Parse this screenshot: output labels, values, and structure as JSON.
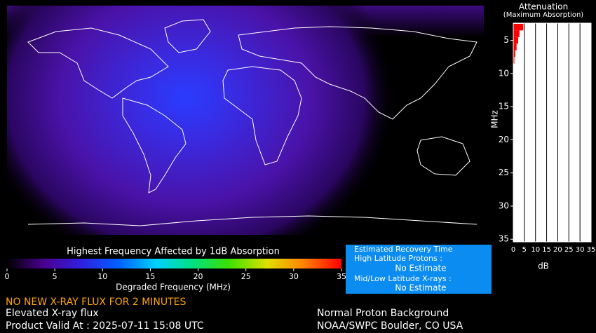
{
  "chart_data": [
    {
      "type": "bar",
      "orientation": "horizontal",
      "title": "Attenuation",
      "subtitle": "(Maximum Absorption)",
      "y": [
        3,
        4,
        5,
        6,
        7,
        8
      ],
      "values": [
        4.5,
        2.8,
        2.2,
        1.5,
        0.9,
        0.5
      ],
      "color": "#ff0000",
      "xlabel": "dB",
      "ylabel": "MHz",
      "xlim": [
        0,
        35
      ],
      "xticks": [
        0,
        5,
        10,
        15,
        20,
        25,
        30,
        35
      ],
      "ylim": [
        2.4,
        35.4
      ],
      "yticks": [
        5,
        10,
        15,
        20,
        25,
        30,
        35
      ],
      "grid": true
    },
    {
      "type": "colorbar",
      "title": "Highest Frequency Affected by 1dB Absorption",
      "xlabel": "Degraded Frequency (MHz)",
      "xlim": [
        0,
        35
      ],
      "xticks": [
        0,
        5,
        10,
        15,
        20,
        25,
        30,
        35
      ],
      "colors": [
        "#000000",
        "#4a0090",
        "#3020e0",
        "#0060ff",
        "#00d0ff",
        "#00e080",
        "#40e000",
        "#e0e000",
        "#ff8000",
        "#ff0000"
      ]
    }
  ],
  "recovery": {
    "title": "Estimated Recovery Time",
    "high_label": "High Latitude Protons :",
    "high_value": "No Estimate",
    "low_label": "Mid/Low Latitude X-rays :",
    "low_value": "No Estimate"
  },
  "status": {
    "alert": "NO NEW X-RAY FLUX FOR 2 MINUTES",
    "xray": "Elevated X-ray flux",
    "valid": "Product Valid At : 2025-07-11 15:08 UTC",
    "proton": "Normal Proton Background",
    "source": "NOAA/SWPC Boulder, CO USA"
  }
}
